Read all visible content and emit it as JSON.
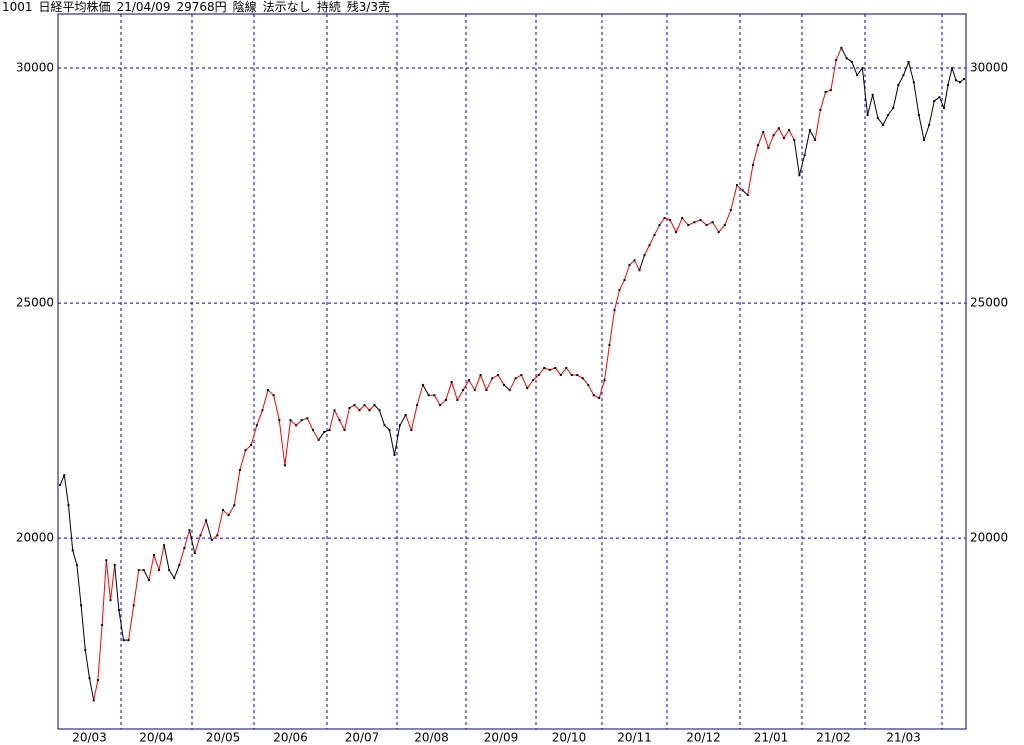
{
  "header": [
    "1001",
    "日経平均株価",
    "21/04/09",
    "29768円",
    "陰線",
    "法示なし",
    "持続",
    "残3/3売"
  ],
  "chart_data": {
    "type": "line",
    "ylim": [
      15940,
      31150
    ],
    "yticks": [
      20000,
      25000,
      30000
    ],
    "grid": true,
    "months": [
      {
        "label": "20/03",
        "values": [
          21130,
          21340,
          20700,
          19740,
          19430,
          18570,
          17620,
          17020,
          16550,
          16980,
          18150,
          19530,
          18680,
          19430,
          18470
        ],
        "colors": [
          "black",
          "black",
          "black",
          "black",
          "black",
          "black",
          "black",
          "black",
          "black",
          "red",
          "red",
          "red",
          "red",
          "red",
          "black"
        ]
      },
      {
        "label": "20/04",
        "values": [
          17830,
          17830,
          18570,
          19320,
          19320,
          19110,
          19640,
          19320,
          19850,
          19320,
          19150,
          19430,
          19790,
          20170
        ],
        "colors": [
          "black",
          "black",
          "red",
          "red",
          "red",
          "black",
          "red",
          "red",
          "red",
          "black",
          "black",
          "black",
          "red",
          "red"
        ]
      },
      {
        "label": "20/05",
        "values": [
          19680,
          20060,
          20380,
          19960,
          20060,
          20600,
          20490,
          20700,
          21450,
          21870,
          21980
        ],
        "colors": [
          "black",
          "red",
          "red",
          "black",
          "red",
          "red",
          "red",
          "red",
          "red",
          "red",
          "red"
        ]
      },
      {
        "label": "20/06",
        "values": [
          22400,
          22720,
          23150,
          23040,
          22510,
          21550,
          22510,
          22400,
          22510,
          22550,
          22300,
          22090,
          22260
        ],
        "colors": [
          "red",
          "red",
          "red",
          "red",
          "red",
          "red",
          "red",
          "red",
          "red",
          "red",
          "red",
          "red",
          "black"
        ]
      },
      {
        "label": "20/07",
        "values": [
          22300,
          22720,
          22510,
          22300,
          22770,
          22830,
          22720,
          22830,
          22720,
          22830,
          22720,
          22400,
          22300,
          21770
        ],
        "colors": [
          "black",
          "red",
          "red",
          "red",
          "red",
          "red",
          "red",
          "red",
          "red",
          "red",
          "black",
          "black",
          "black",
          "black"
        ]
      },
      {
        "label": "20/08",
        "values": [
          22400,
          22620,
          22300,
          22830,
          23260,
          23040,
          23040,
          22830,
          22940,
          23320,
          22940,
          23150
        ],
        "colors": [
          "black",
          "black",
          "red",
          "red",
          "red",
          "black",
          "red",
          "red",
          "red",
          "red",
          "red",
          "red"
        ]
      },
      {
        "label": "20/09",
        "values": [
          23360,
          23150,
          23470,
          23150,
          23400,
          23470,
          23260,
          23150,
          23400,
          23470,
          23190,
          23360
        ],
        "colors": [
          "red",
          "red",
          "red",
          "red",
          "red",
          "red",
          "red",
          "black",
          "red",
          "red",
          "red",
          "red"
        ]
      },
      {
        "label": "20/10",
        "values": [
          23470,
          23620,
          23580,
          23620,
          23470,
          23620,
          23470,
          23470,
          23400,
          23260,
          23040,
          22980
        ],
        "colors": [
          "red",
          "red",
          "red",
          "red",
          "red",
          "red",
          "red",
          "red",
          "red",
          "red",
          "red",
          "red"
        ]
      },
      {
        "label": "20/11",
        "values": [
          23360,
          24110,
          24850,
          25280,
          25490,
          25810,
          25910,
          25700,
          26020,
          26230,
          26450,
          26660,
          26810
        ],
        "colors": [
          "red",
          "red",
          "red",
          "red",
          "red",
          "red",
          "red",
          "red",
          "black",
          "red",
          "red",
          "red",
          "red"
        ]
      },
      {
        "label": "20/12",
        "values": [
          26770,
          26510,
          26810,
          26660,
          26720,
          26770,
          26660,
          26720,
          26510,
          26660,
          26980,
          27510
        ],
        "colors": [
          "red",
          "red",
          "red",
          "red",
          "red",
          "red",
          "red",
          "red",
          "red",
          "red",
          "red",
          "red"
        ]
      },
      {
        "label": "21/01",
        "values": [
          27400,
          27300,
          27940,
          28360,
          28640,
          28300,
          28570,
          28720,
          28510,
          28680,
          28470,
          27720
        ],
        "colors": [
          "red",
          "black",
          "red",
          "red",
          "red",
          "red",
          "red",
          "red",
          "red",
          "red",
          "red",
          "black"
        ]
      },
      {
        "label": "21/02",
        "values": [
          28150,
          28680,
          28470,
          29110,
          29490,
          29530,
          30170,
          30430,
          30210,
          30130,
          29850,
          30000
        ],
        "colors": [
          "black",
          "black",
          "black",
          "red",
          "red",
          "red",
          "red",
          "red",
          "black",
          "black",
          "black",
          "black"
        ]
      },
      {
        "label": "21/03",
        "values": [
          29000,
          29430,
          28940,
          28790,
          29000,
          29150,
          29640,
          29850,
          30130,
          29700,
          29000,
          28470,
          28790,
          29300,
          29380
        ],
        "colors": [
          "black",
          "black",
          "black",
          "black",
          "black",
          "black",
          "black",
          "black",
          "black",
          "black",
          "black",
          "black",
          "black",
          "black",
          "black"
        ]
      },
      {
        "label": null,
        "values": [
          29150,
          29640,
          30000,
          29740,
          29700,
          29768
        ],
        "colors": [
          "black",
          "black",
          "black",
          "black",
          "black",
          "black"
        ]
      }
    ]
  }
}
